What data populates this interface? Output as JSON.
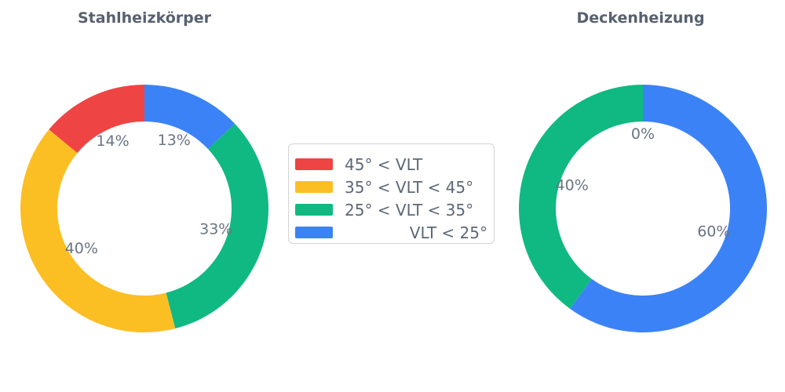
{
  "chart_data": [
    {
      "type": "donut",
      "title": "Stahlheizkörper",
      "direction": "counterclockwise",
      "start_angle": "12-oclock",
      "hole_ratio": 0.7,
      "slices": [
        {
          "label": "45° < VLT",
          "value": 14,
          "pct_label": "14%",
          "color": "#EF4444"
        },
        {
          "label": "35° < VLT < 45°",
          "value": 40,
          "pct_label": "40%",
          "color": "#FBBF24"
        },
        {
          "label": "25° < VLT < 35°",
          "value": 33,
          "pct_label": "33%",
          "color": "#10B981"
        },
        {
          "label": "VLT < 25°",
          "value": 13,
          "pct_label": "13%",
          "color": "#3B82F6"
        }
      ]
    },
    {
      "type": "donut",
      "title": "Deckenheizung",
      "direction": "counterclockwise",
      "start_angle": "12-oclock",
      "hole_ratio": 0.7,
      "slices": [
        {
          "label": "45° < VLT",
          "value": 0,
          "pct_label": "0%",
          "color": "#EF4444"
        },
        {
          "label": "35° < VLT < 45°",
          "value": 0,
          "pct_label": "0%",
          "color": "#FBBF24"
        },
        {
          "label": "25° < VLT < 35°",
          "value": 40,
          "pct_label": "40%",
          "color": "#10B981"
        },
        {
          "label": "VLT < 25°",
          "value": 60,
          "pct_label": "60%",
          "color": "#3B82F6"
        }
      ]
    }
  ],
  "legend": {
    "items": [
      {
        "label": "45° < VLT",
        "color": "#EF4444"
      },
      {
        "label": "35° < VLT < 45°",
        "color": "#FBBF24"
      },
      {
        "label": "25° < VLT < 35°",
        "color": "#10B981"
      },
      {
        "label": "VLT < 25°",
        "color": "#3B82F6"
      }
    ]
  },
  "colors": {
    "title_text": "#57606F",
    "value_label_text": "#6A7483",
    "legend_text": "#5D6778",
    "legend_border": "#d4d4d4",
    "background": "#ffffff"
  }
}
